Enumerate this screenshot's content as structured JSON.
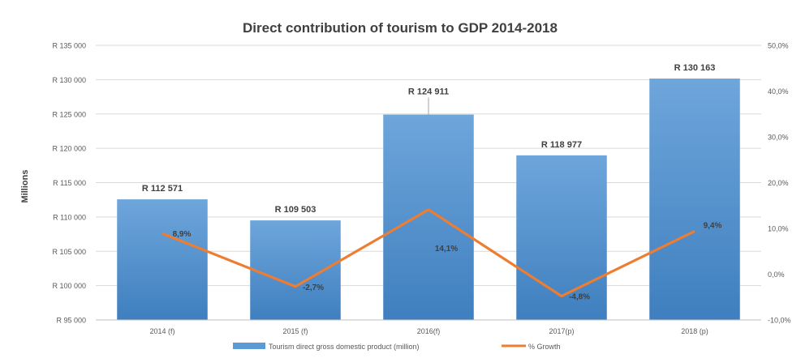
{
  "chart_data": {
    "type": "bar",
    "title": "Direct contribution  of tourism  to GDP 2014-2018",
    "ylabel": "Millions",
    "categories": [
      "2014 (f)",
      "2015 (f)",
      "2016(f)",
      "2017(p)",
      "2018 (p)"
    ],
    "series": [
      {
        "name": "Tourism direct gross domestic product (million)",
        "type": "bar",
        "axis": "left",
        "color": "#5b9bd5",
        "values": [
          112571,
          109503,
          124911,
          118977,
          130163
        ],
        "labels": [
          "R 112 571",
          "R 109 503",
          "R 124 911",
          "R 118 977",
          "R 130 163"
        ]
      },
      {
        "name": "% Growth",
        "type": "line",
        "axis": "right",
        "color": "#ed7d31",
        "values": [
          8.9,
          -2.7,
          14.1,
          -4.8,
          9.4
        ],
        "labels": [
          "8,9%",
          "-2,7%",
          "14,1%",
          "-4,8%",
          "9,4%"
        ]
      }
    ],
    "y_left": {
      "min": 95000,
      "max": 135000,
      "ticks": [
        95000,
        100000,
        105000,
        110000,
        115000,
        120000,
        125000,
        130000,
        135000
      ],
      "tick_labels": [
        "R 95 000",
        "R 100 000",
        "R 105 000",
        "R 110 000",
        "R 115 000",
        "R 120 000",
        "R 125 000",
        "R 130 000",
        "R 135 000"
      ]
    },
    "y_right": {
      "min": -10,
      "max": 50,
      "ticks": [
        -10,
        0,
        10,
        20,
        30,
        40,
        50
      ],
      "tick_labels": [
        "-10,0%",
        "0,0%",
        "10,0%",
        "20,0%",
        "30,0%",
        "40,0%",
        "50,0%"
      ]
    },
    "grid": true,
    "legend_position": "bottom"
  }
}
